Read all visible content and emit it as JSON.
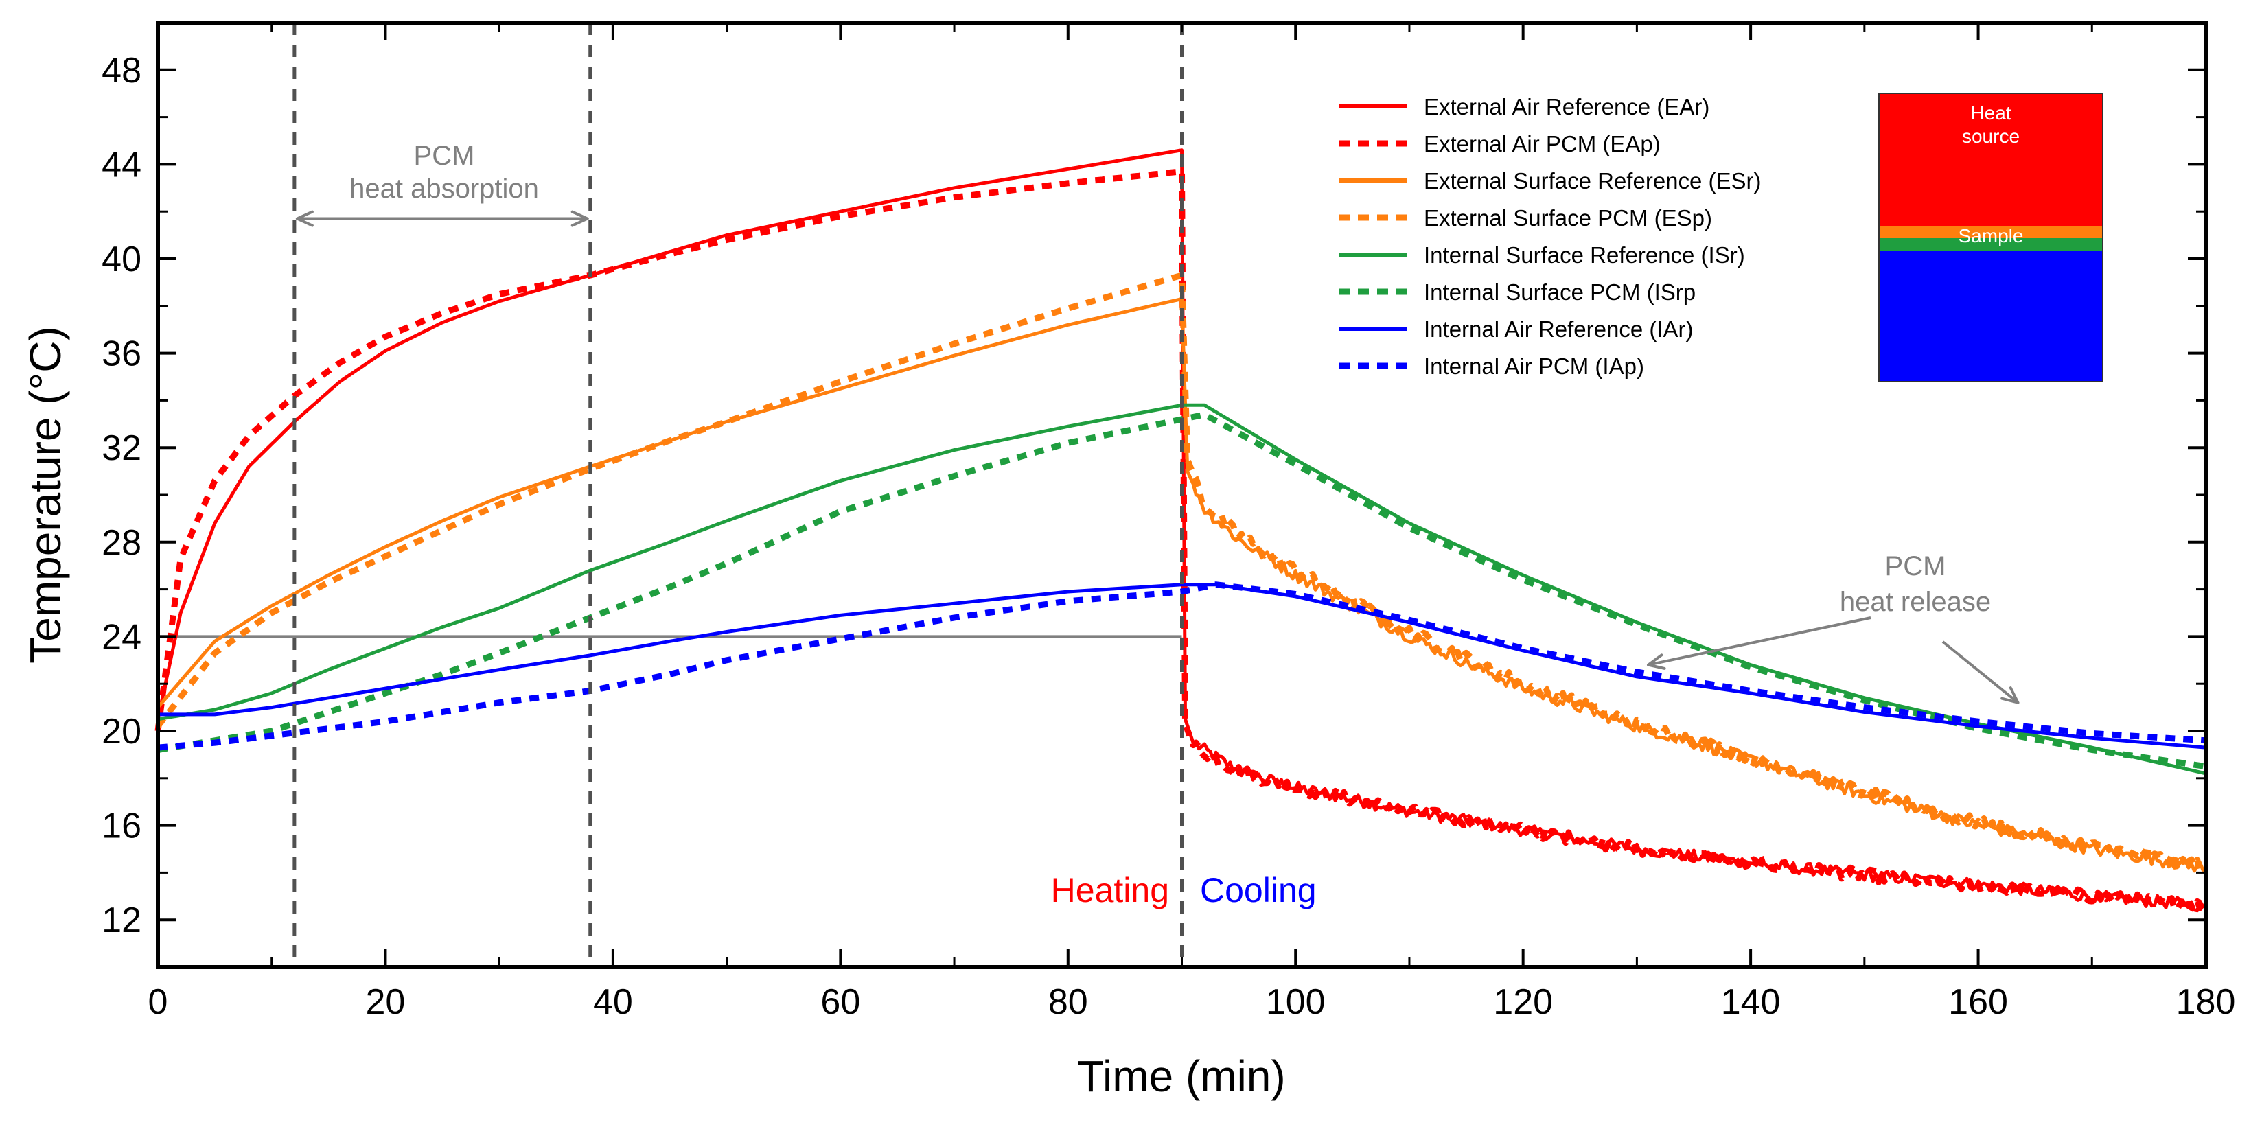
{
  "chart_data": {
    "type": "line",
    "title": "",
    "xlabel": "Time (min)",
    "ylabel": "Temperature (°C)",
    "xlim": [
      0,
      180
    ],
    "ylim": [
      10,
      50
    ],
    "x_ticks": [
      0,
      20,
      40,
      60,
      80,
      100,
      120,
      140,
      160,
      180
    ],
    "y_ticks": [
      12,
      16,
      20,
      24,
      28,
      32,
      36,
      40,
      44,
      48
    ],
    "grid": false,
    "legend_position": "top-right",
    "series": [
      {
        "name": "External Air Reference (EAr)",
        "color": "#ff0000",
        "style": "solid",
        "noise": true,
        "x": [
          0,
          2,
          5,
          8,
          12,
          16,
          20,
          25,
          30,
          38,
          45,
          50,
          60,
          70,
          80,
          90,
          90.3,
          91,
          93,
          95,
          100,
          110,
          120,
          130,
          140,
          150,
          160,
          170,
          180
        ],
        "y": [
          20.5,
          25,
          28.8,
          31.2,
          33.1,
          34.8,
          36.1,
          37.3,
          38.2,
          39.3,
          40.3,
          41,
          42,
          43,
          43.8,
          44.6,
          20.5,
          19.5,
          18.9,
          18.3,
          17.6,
          16.6,
          15.8,
          15,
          14.4,
          13.9,
          13.5,
          13,
          12.6
        ]
      },
      {
        "name": "External Air PCM (EAp)",
        "color": "#ff0000",
        "style": "dotted",
        "noise": true,
        "x": [
          0,
          2,
          5,
          8,
          12,
          16,
          20,
          25,
          30,
          38,
          45,
          50,
          60,
          70,
          80,
          90,
          90.3,
          91,
          93,
          95,
          100,
          110,
          120,
          130,
          140,
          150,
          160,
          170,
          180
        ],
        "y": [
          20,
          27.3,
          30.6,
          32.5,
          34.2,
          35.6,
          36.7,
          37.7,
          38.5,
          39.3,
          40.2,
          40.8,
          41.8,
          42.6,
          43.2,
          43.7,
          20.3,
          19.4,
          18.8,
          18.3,
          17.6,
          16.6,
          15.8,
          15,
          14.4,
          13.9,
          13.4,
          13,
          12.6
        ]
      },
      {
        "name": "External Surface Reference (ESr)",
        "color": "#ff7f0e",
        "style": "solid",
        "noise": true,
        "x": [
          0,
          5,
          10,
          15,
          20,
          25,
          30,
          38,
          45,
          50,
          60,
          70,
          80,
          90,
          90.5,
          92,
          95,
          100,
          110,
          120,
          130,
          140,
          150,
          160,
          170,
          180
        ],
        "y": [
          21,
          23.8,
          25.3,
          26.6,
          27.8,
          28.9,
          29.9,
          31.2,
          32.3,
          33.1,
          34.5,
          35.9,
          37.2,
          38.3,
          31,
          29.4,
          28.1,
          26.6,
          24,
          21.8,
          20.2,
          18.8,
          17.3,
          16,
          15,
          14.2
        ]
      },
      {
        "name": "External Surface PCM (ESp)",
        "color": "#ff7f0e",
        "style": "dotted",
        "noise": true,
        "x": [
          0,
          5,
          10,
          15,
          20,
          25,
          30,
          38,
          45,
          50,
          60,
          70,
          80,
          90,
          90.5,
          92,
          95,
          100,
          110,
          120,
          130,
          140,
          150,
          160,
          170,
          180
        ],
        "y": [
          20.2,
          23.3,
          25,
          26.3,
          27.4,
          28.5,
          29.6,
          31.1,
          32.3,
          33.1,
          34.8,
          36.4,
          37.9,
          39.3,
          31.5,
          29.6,
          28.3,
          26.8,
          24.2,
          22,
          20.3,
          18.9,
          17.4,
          16.1,
          15.1,
          14.3
        ]
      },
      {
        "name": "Internal Surface Reference (ISr)",
        "color": "#1f9e3f",
        "style": "solid",
        "noise": false,
        "x": [
          0,
          5,
          10,
          15,
          20,
          25,
          30,
          38,
          45,
          50,
          60,
          70,
          80,
          90,
          92,
          100,
          110,
          120,
          130,
          140,
          150,
          160,
          170,
          180
        ],
        "y": [
          20.5,
          20.9,
          21.6,
          22.6,
          23.5,
          24.4,
          25.2,
          26.8,
          28,
          28.9,
          30.6,
          31.9,
          32.9,
          33.8,
          33.8,
          31.5,
          28.8,
          26.6,
          24.6,
          22.8,
          21.4,
          20.3,
          19.3,
          18.2
        ]
      },
      {
        "name": "Internal Surface PCM (ISrp",
        "color": "#1f9e3f",
        "style": "dotted",
        "noise": false,
        "x": [
          0,
          5,
          10,
          15,
          20,
          25,
          30,
          38,
          45,
          50,
          60,
          70,
          80,
          90,
          92,
          100,
          110,
          120,
          130,
          140,
          150,
          160,
          170,
          180
        ],
        "y": [
          19.2,
          19.6,
          20,
          20.8,
          21.6,
          22.4,
          23.3,
          24.8,
          26.1,
          27.1,
          29.3,
          30.8,
          32.2,
          33.2,
          33.4,
          31.3,
          28.6,
          26.4,
          24.5,
          22.7,
          21.3,
          20.1,
          19.2,
          18.5
        ]
      },
      {
        "name": "Internal Air Reference (IAr)",
        "color": "#0000ff",
        "style": "solid",
        "noise": false,
        "x": [
          0,
          5,
          10,
          15,
          20,
          25,
          30,
          38,
          45,
          50,
          60,
          70,
          80,
          90,
          93,
          100,
          110,
          120,
          130,
          140,
          150,
          160,
          170,
          180
        ],
        "y": [
          20.7,
          20.7,
          21,
          21.4,
          21.8,
          22.2,
          22.6,
          23.2,
          23.8,
          24.2,
          24.9,
          25.4,
          25.9,
          26.2,
          26.2,
          25.7,
          24.6,
          23.4,
          22.3,
          21.6,
          20.8,
          20.2,
          19.7,
          19.3
        ]
      },
      {
        "name": "Internal Air PCM (IAp)",
        "color": "#0000ff",
        "style": "dotted",
        "noise": false,
        "x": [
          0,
          5,
          10,
          15,
          20,
          25,
          30,
          38,
          45,
          50,
          60,
          70,
          80,
          90,
          93,
          100,
          110,
          120,
          130,
          140,
          150,
          160,
          170,
          180
        ],
        "y": [
          19.3,
          19.5,
          19.8,
          20.1,
          20.4,
          20.8,
          21.2,
          21.7,
          22.4,
          23,
          23.9,
          24.8,
          25.5,
          25.9,
          26.2,
          25.8,
          24.7,
          23.5,
          22.5,
          21.7,
          21,
          20.4,
          19.9,
          19.6
        ]
      }
    ],
    "reference_line": {
      "y": 24,
      "x": [
        0,
        90
      ],
      "color": "#808080"
    },
    "vertical_lines": [
      12,
      38,
      90
    ],
    "annotations": {
      "absorption": {
        "line1": "PCM",
        "line2": "heat absorption",
        "span": [
          12,
          38
        ],
        "y": 41.7
      },
      "release": {
        "line1": "PCM",
        "line2": "heat release",
        "targets": [
          {
            "x": 131,
            "y": 22.8
          },
          {
            "x": 163.5,
            "y": 21.2
          }
        ]
      },
      "heating": {
        "text": "Heating",
        "color": "#ff0000"
      },
      "cooling": {
        "text": "Cooling",
        "color": "#0000ff"
      }
    },
    "inset": {
      "heat_source_line1": "Heat",
      "heat_source_line2": "source",
      "sample_label": "Sample",
      "colors": {
        "heat": "#ff0000",
        "pcm": "#ff7f0e",
        "sample": "#1f9e3f",
        "interior": "#0000ff"
      }
    }
  }
}
